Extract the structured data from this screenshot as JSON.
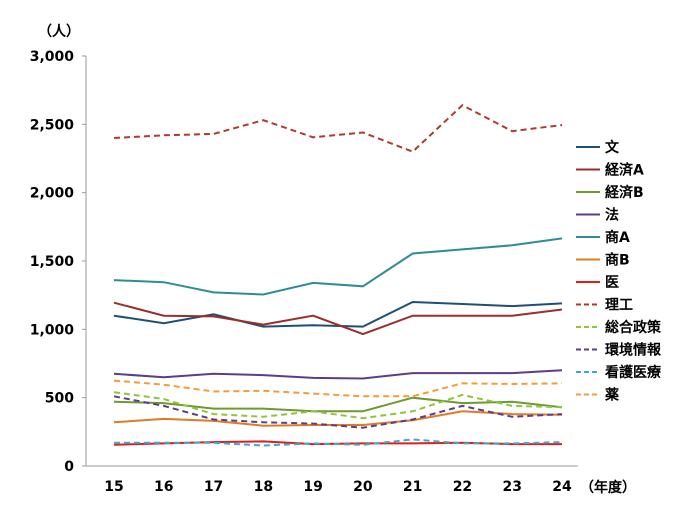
{
  "chart_data": {
    "type": "line",
    "y_unit_label": "（人）",
    "x_unit_label": "（年度）",
    "x": [
      "15",
      "16",
      "17",
      "18",
      "19",
      "20",
      "21",
      "22",
      "23",
      "24"
    ],
    "ylim": [
      0,
      3000
    ],
    "yticks": [
      0,
      500,
      1000,
      1500,
      2000,
      2500,
      3000
    ],
    "ytick_labels": [
      "0",
      "500",
      "1,000",
      "1,500",
      "2,000",
      "2,500",
      "3,000"
    ],
    "grid": false,
    "legend_position": "right",
    "series": [
      {
        "name": "文",
        "color": "#1f4e79",
        "dash": false,
        "values": [
          1100,
          1045,
          1110,
          1020,
          1030,
          1020,
          1200,
          1185,
          1170,
          1190
        ]
      },
      {
        "name": "経済A",
        "color": "#9b2d2a",
        "dash": false,
        "values": [
          1195,
          1100,
          1095,
          1035,
          1100,
          965,
          1100,
          1100,
          1100,
          1145
        ]
      },
      {
        "name": "経済B",
        "color": "#6f9a2f",
        "dash": false,
        "values": [
          470,
          460,
          420,
          420,
          400,
          400,
          500,
          460,
          470,
          430
        ]
      },
      {
        "name": "法",
        "color": "#5b3d8a",
        "dash": false,
        "values": [
          675,
          650,
          675,
          665,
          645,
          640,
          680,
          680,
          680,
          700
        ]
      },
      {
        "name": "商A",
        "color": "#2e8b9a",
        "dash": false,
        "values": [
          1360,
          1345,
          1270,
          1255,
          1340,
          1315,
          1555,
          1585,
          1615,
          1665
        ]
      },
      {
        "name": "商B",
        "color": "#e07b22",
        "dash": false,
        "values": [
          320,
          345,
          330,
          295,
          300,
          300,
          335,
          400,
          380,
          375
        ]
      },
      {
        "name": "医",
        "color": "#e01c1c",
        "dash": false,
        "values": [
          155,
          165,
          175,
          180,
          160,
          165,
          165,
          170,
          160,
          160
        ]
      },
      {
        "name": "理工",
        "color": "#b03a2e",
        "dash": true,
        "values": [
          2400,
          2420,
          2430,
          2530,
          2405,
          2440,
          2300,
          2640,
          2450,
          2495
        ]
      },
      {
        "name": "総合政策",
        "color": "#8dc53e",
        "dash": true,
        "values": [
          540,
          490,
          380,
          360,
          400,
          350,
          400,
          520,
          440,
          430
        ]
      },
      {
        "name": "環境情報",
        "color": "#5b3d8a",
        "dash": true,
        "values": [
          510,
          440,
          340,
          320,
          310,
          280,
          340,
          440,
          360,
          380
        ]
      },
      {
        "name": "看護医療",
        "color": "#3fa9c7",
        "dash": true,
        "values": [
          170,
          170,
          170,
          150,
          165,
          155,
          195,
          165,
          165,
          175
        ]
      },
      {
        "name": "薬",
        "color": "#f39c3a",
        "dash": true,
        "values": [
          625,
          595,
          545,
          550,
          530,
          510,
          510,
          605,
          600,
          605
        ]
      }
    ]
  }
}
